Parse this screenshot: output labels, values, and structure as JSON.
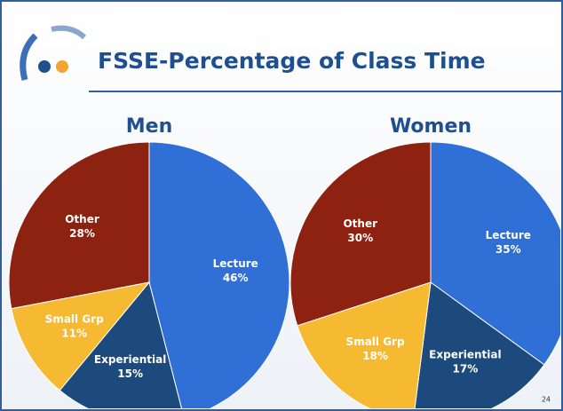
{
  "slide": {
    "title": "FSSE-Percentage of Class Time",
    "page_number": "24"
  },
  "chart_data": [
    {
      "type": "pie",
      "title": "Men",
      "categories": [
        "Lecture",
        "Experiential",
        "Small Grp",
        "Other"
      ],
      "values": [
        46,
        15,
        11,
        28
      ],
      "value_labels": [
        "46%",
        "15%",
        "11%",
        "28%"
      ],
      "colors": [
        "#2f6fd6",
        "#1d4a7c",
        "#f6b932",
        "#8e2210"
      ]
    },
    {
      "type": "pie",
      "title": "Women",
      "categories": [
        "Lecture",
        "Experiential",
        "Small Grp",
        "Other"
      ],
      "values": [
        35,
        17,
        18,
        30
      ],
      "value_labels": [
        "35%",
        "17%",
        "18%",
        "30%"
      ],
      "colors": [
        "#2f6fd6",
        "#1d4a7c",
        "#f6b932",
        "#8e2210"
      ]
    }
  ]
}
